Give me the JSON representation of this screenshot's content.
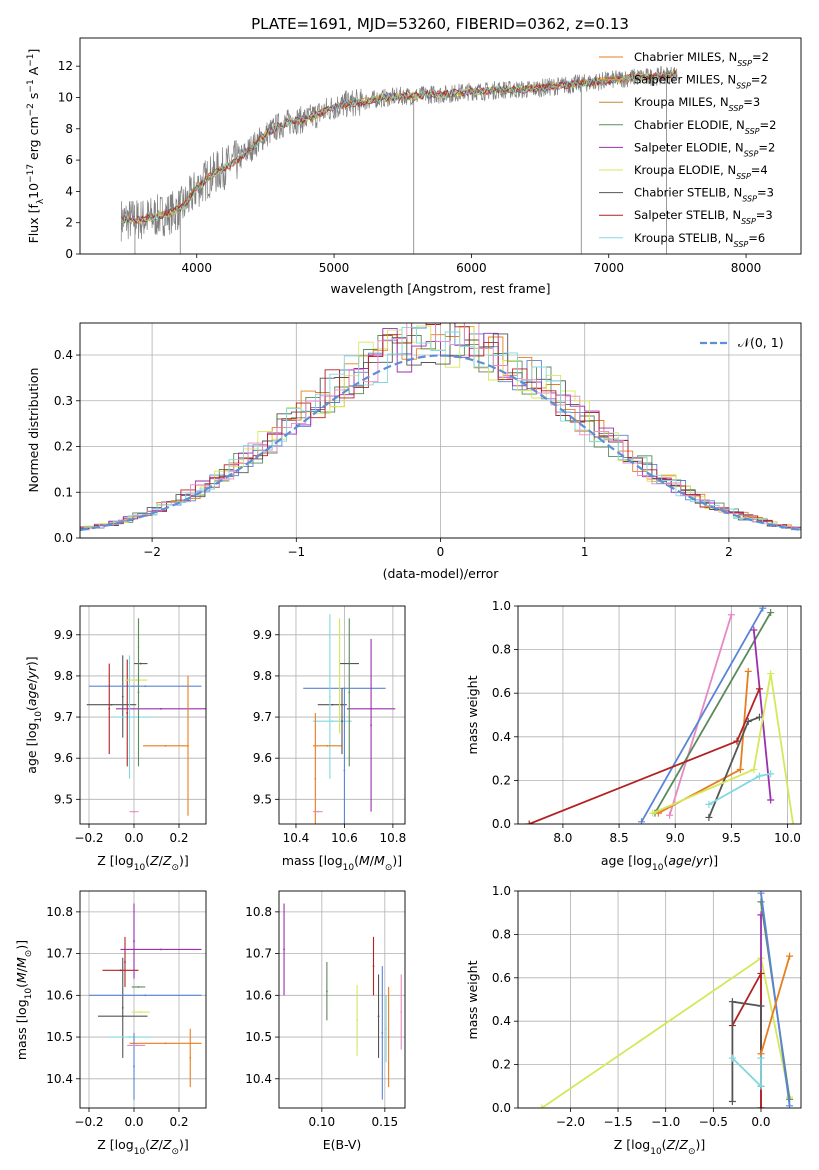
{
  "title": "PLATE=1691, MJD=53260, FIBERID=0362, z=0.13",
  "colors": {
    "chabrier_miles": "#e87d1e",
    "salpeter_miles": "#f28e2b",
    "kroupa_miles": "#c98a30",
    "chabrier_elodie": "#5b8f5b",
    "salpeter_elodie": "#9b2fae",
    "kroupa_elodie": "#d4e85a",
    "chabrier_stelib": "#555555",
    "salpeter_stelib": "#b22222",
    "kroupa_stelib": "#80d8e0",
    "extra_pink": "#e78ac3",
    "extra_blue": "#5b84d6",
    "extra_green": "#5a8a5a",
    "observed": "#808080",
    "gaussian": "#5b8fd6"
  },
  "chart_data": [
    {
      "id": "spectrum",
      "type": "line",
      "xlabel": "wavelength [Angstrom, rest frame]",
      "ylabel": "Flux [f_λ10^-17 erg cm^-2 s^-1 A^-1]",
      "xlim": [
        3150,
        8400
      ],
      "ylim": [
        0,
        13.8
      ],
      "xticks": [
        4000,
        5000,
        6000,
        7000,
        8000
      ],
      "yticks": [
        0,
        2,
        4,
        6,
        8,
        10,
        12
      ],
      "legend_position": "top-right",
      "legend": [
        {
          "text": "Chabrier MILES, N",
          "sub": "SSP",
          "tail": "=2",
          "color": "#e87d1e"
        },
        {
          "text": "Salpeter MILES, N",
          "sub": "SSP",
          "tail": "=2",
          "color": "#f28e2b"
        },
        {
          "text": "Kroupa MILES, N",
          "sub": "SSP",
          "tail": "=3",
          "color": "#c98a30"
        },
        {
          "text": "Chabrier ELODIE, N",
          "sub": "SSP",
          "tail": "=2",
          "color": "#5b8f5b"
        },
        {
          "text": "Salpeter ELODIE, N",
          "sub": "SSP",
          "tail": "=2",
          "color": "#9b2fae"
        },
        {
          "text": "Kroupa ELODIE, N",
          "sub": "SSP",
          "tail": "=4",
          "color": "#d4e85a"
        },
        {
          "text": "Chabrier STELIB, N",
          "sub": "SSP",
          "tail": "=3",
          "color": "#555555"
        },
        {
          "text": "Salpeter STELIB, N",
          "sub": "SSP",
          "tail": "=3",
          "color": "#b22222"
        },
        {
          "text": "Kroupa STELIB, N",
          "sub": "SSP",
          "tail": "=6",
          "color": "#80d8e0"
        }
      ],
      "continuum": {
        "x": [
          3450,
          3600,
          3700,
          3800,
          3900,
          4000,
          4100,
          4200,
          4300,
          4400,
          4500,
          4600,
          4700,
          4800,
          4900,
          5000,
          5100,
          5200,
          5300,
          5400,
          5500,
          5600,
          5700,
          5800,
          5900,
          6000,
          6100,
          6200,
          6300,
          6400,
          6500,
          6600,
          6700,
          6800,
          6900,
          7000,
          7100,
          7200,
          7300,
          7400,
          7500
        ],
        "y": [
          2.2,
          2.2,
          2.4,
          2.6,
          3.0,
          4.2,
          5.0,
          5.5,
          6.0,
          6.8,
          7.6,
          8.2,
          8.5,
          8.6,
          9.0,
          9.4,
          9.6,
          9.7,
          9.9,
          10.0,
          10.1,
          10.1,
          10.2,
          10.2,
          10.3,
          10.4,
          10.4,
          10.5,
          10.5,
          10.5,
          10.6,
          10.7,
          10.8,
          10.9,
          11.0,
          11.1,
          11.2,
          11.3,
          11.3,
          11.4,
          11.5
        ]
      },
      "dips": [
        {
          "x": 3550,
          "y": 0.0
        },
        {
          "x": 3880,
          "y": 0.0
        },
        {
          "x": 5580,
          "y": 0.0
        },
        {
          "x": 6800,
          "y": 0.0
        },
        {
          "x": 7420,
          "y": 0.0
        }
      ]
    },
    {
      "id": "residuals",
      "type": "line",
      "xlabel": "(data-model)/error",
      "ylabel": "Normed distribution",
      "xlim": [
        -2.5,
        2.5
      ],
      "ylim": [
        0,
        0.47
      ],
      "xticks": [
        -2,
        -1,
        0,
        1,
        2
      ],
      "yticks": [
        0.0,
        0.1,
        0.2,
        0.3,
        0.4
      ],
      "grid": true,
      "legend_position": "top-right",
      "legend_label": "𝒩(0, 1)",
      "gaussian": {
        "mean": 0,
        "sigma": 1
      }
    },
    {
      "id": "age_vs_Z",
      "type": "scatter",
      "xlabel": "Z [log10(Z/Z☉)]",
      "ylabel": "age  [log10(age/yr)]",
      "xlim": [
        -0.24,
        0.32
      ],
      "ylim": [
        9.44,
        9.97
      ],
      "xticks": [
        -0.2,
        0.0,
        0.2
      ],
      "xtick_labels": [
        "−0.2",
        "0.0",
        "0.2"
      ],
      "yticks": [
        9.5,
        9.6,
        9.7,
        9.8,
        9.9
      ],
      "grid": true,
      "points": [
        {
          "x": -0.05,
          "y": 9.75,
          "xerr": 0.0,
          "yerr": 0.1,
          "color": "#555555"
        },
        {
          "x": 0.03,
          "y": 9.83,
          "xerr": 0.03,
          "yerr": 0.0,
          "color": "#555555"
        },
        {
          "x": -0.1,
          "y": 9.73,
          "xerr": 0.11,
          "yerr": 0.0,
          "color": "#555555"
        },
        {
          "x": 0.05,
          "y": 9.775,
          "xerr": 0.25,
          "yerr": 0.0,
          "color": "#5b84d6"
        },
        {
          "x": 0.12,
          "y": 9.72,
          "xerr": 0.2,
          "yerr": 0.0,
          "color": "#9b2fae"
        },
        {
          "x": 0.0,
          "y": 9.7,
          "xerr": 0.09,
          "yerr": 0.0,
          "color": "#80d8e0"
        },
        {
          "x": 0.14,
          "y": 9.63,
          "xerr": 0.1,
          "yerr": 0.0,
          "color": "#e87d1e"
        },
        {
          "x": 0.24,
          "y": 9.63,
          "xerr": 0.0,
          "yerr": 0.17,
          "color": "#e87d1e"
        },
        {
          "x": -0.03,
          "y": 9.71,
          "xerr": 0.0,
          "yerr": 0.13,
          "color": "#b22222"
        },
        {
          "x": 0.02,
          "y": 9.87,
          "xerr": 0.0,
          "yerr": 0.07,
          "color": "#d4e85a"
        },
        {
          "x": -0.11,
          "y": 9.72,
          "xerr": 0.0,
          "yerr": 0.11,
          "color": "#b22222"
        },
        {
          "x": -0.02,
          "y": 9.7,
          "xerr": 0.0,
          "yerr": 0.15,
          "color": "#80d8e0"
        },
        {
          "x": 0.0,
          "y": 9.47,
          "xerr": 0.02,
          "yerr": 0.0,
          "color": "#e78ac3"
        },
        {
          "x": 0.01,
          "y": 9.79,
          "xerr": 0.05,
          "yerr": 0.0,
          "color": "#d4e85a"
        },
        {
          "x": 0.02,
          "y": 9.76,
          "xerr": 0.0,
          "yerr": 0.18,
          "color": "#5a8a5a"
        }
      ]
    },
    {
      "id": "age_vs_mass",
      "type": "scatter",
      "xlabel": "mass [log10(M/M☉)]",
      "xlim": [
        10.33,
        10.85
      ],
      "ylim": [
        9.44,
        9.97
      ],
      "xticks": [
        10.4,
        10.6,
        10.8
      ],
      "yticks": [
        9.5,
        9.6,
        9.7,
        9.8,
        9.9
      ],
      "grid": true,
      "points": [
        {
          "x": 10.55,
          "y": 9.73,
          "xerr": 0.06,
          "yerr": 0.0,
          "color": "#555555"
        },
        {
          "x": 10.62,
          "y": 9.83,
          "xerr": 0.04,
          "yerr": 0.0,
          "color": "#555555"
        },
        {
          "x": 10.6,
          "y": 9.77,
          "xerr": 0.17,
          "yerr": 0.0,
          "color": "#5b84d6"
        },
        {
          "x": 10.71,
          "y": 9.72,
          "xerr": 0.1,
          "yerr": 0.0,
          "color": "#9b2fae"
        },
        {
          "x": 10.71,
          "y": 9.68,
          "xerr": 0.0,
          "yerr": 0.21,
          "color": "#9b2fae"
        },
        {
          "x": 10.55,
          "y": 9.69,
          "xerr": 0.08,
          "yerr": 0.0,
          "color": "#80d8e0"
        },
        {
          "x": 10.54,
          "y": 9.75,
          "xerr": 0.0,
          "yerr": 0.2,
          "color": "#80d8e0"
        },
        {
          "x": 10.53,
          "y": 9.63,
          "xerr": 0.06,
          "yerr": 0.0,
          "color": "#e87d1e"
        },
        {
          "x": 10.48,
          "y": 9.55,
          "xerr": 0.0,
          "yerr": 0.16,
          "color": "#e87d1e"
        },
        {
          "x": 10.58,
          "y": 9.8,
          "xerr": 0.0,
          "yerr": 0.14,
          "color": "#d4e85a"
        },
        {
          "x": 10.59,
          "y": 9.69,
          "xerr": 0.0,
          "yerr": 0.08,
          "color": "#555555"
        },
        {
          "x": 10.62,
          "y": 9.76,
          "xerr": 0.0,
          "yerr": 0.18,
          "color": "#5a8a5a"
        },
        {
          "x": 10.6,
          "y": 9.57,
          "xerr": 0.0,
          "yerr": 0.2,
          "color": "#5b84d6"
        },
        {
          "x": 10.49,
          "y": 9.47,
          "xerr": 0.02,
          "yerr": 0.0,
          "color": "#e78ac3"
        }
      ]
    },
    {
      "id": "weight_vs_age",
      "type": "line",
      "xlabel": "age  [log10(age/yr)]",
      "ylabel": "mass weight",
      "xlim": [
        7.6,
        10.12
      ],
      "ylim": [
        0,
        1
      ],
      "xticks": [
        8.0,
        8.5,
        9.0,
        9.5,
        10.0
      ],
      "yticks": [
        0.0,
        0.2,
        0.4,
        0.6,
        0.8,
        1.0
      ],
      "grid": true,
      "series": [
        {
          "color": "#e78ac3",
          "x": [
            8.95,
            9.5
          ],
          "y": [
            0.04,
            0.96
          ]
        },
        {
          "color": "#5b84d6",
          "x": [
            8.7,
            9.78
          ],
          "y": [
            0.01,
            0.99
          ]
        },
        {
          "color": "#5a8a5a",
          "x": [
            8.82,
            9.85
          ],
          "y": [
            0.05,
            0.97
          ]
        },
        {
          "color": "#9b2fae",
          "x": [
            9.7,
            9.85
          ],
          "y": [
            0.89,
            0.11
          ]
        },
        {
          "color": "#e87d1e",
          "x": [
            8.85,
            9.58,
            9.65
          ],
          "y": [
            0.05,
            0.25,
            0.7
          ]
        },
        {
          "color": "#b22222",
          "x": [
            7.7,
            9.55,
            9.75
          ],
          "y": [
            0.0,
            0.38,
            0.62
          ]
        },
        {
          "color": "#555555",
          "x": [
            9.3,
            9.65,
            9.75
          ],
          "y": [
            0.03,
            0.47,
            0.49
          ]
        },
        {
          "color": "#d4e85a",
          "x": [
            8.8,
            9.7,
            9.85,
            10.05
          ],
          "y": [
            0.05,
            0.25,
            0.69,
            0.0
          ]
        },
        {
          "color": "#80d8e0",
          "x": [
            9.3,
            9.75,
            9.85
          ],
          "y": [
            0.09,
            0.22,
            0.23
          ]
        }
      ]
    },
    {
      "id": "mass_vs_Z",
      "type": "scatter",
      "xlabel": "Z [log10(Z/Z☉)]",
      "ylabel": "mass [log10(M/M☉)]",
      "xlim": [
        -0.24,
        0.32
      ],
      "ylim": [
        10.33,
        10.85
      ],
      "xticks": [
        -0.2,
        0.0,
        0.2
      ],
      "xtick_labels": [
        "−0.2",
        "0.0",
        "0.2"
      ],
      "yticks": [
        10.4,
        10.5,
        10.6,
        10.7,
        10.8
      ],
      "grid": true,
      "points": [
        {
          "x": -0.05,
          "y": 10.55,
          "xerr": 0.11,
          "yerr": 0.0,
          "color": "#555555"
        },
        {
          "x": -0.05,
          "y": 10.57,
          "xerr": 0.0,
          "yerr": 0.12,
          "color": "#555555"
        },
        {
          "x": -0.06,
          "y": 10.66,
          "xerr": 0.08,
          "yerr": 0.0,
          "color": "#b22222"
        },
        {
          "x": -0.04,
          "y": 10.68,
          "xerr": 0.0,
          "yerr": 0.06,
          "color": "#b22222"
        },
        {
          "x": 0.12,
          "y": 10.71,
          "xerr": 0.18,
          "yerr": 0.0,
          "color": "#9b2fae"
        },
        {
          "x": 0.0,
          "y": 10.73,
          "xerr": 0.0,
          "yerr": 0.09,
          "color": "#9b2fae"
        },
        {
          "x": 0.05,
          "y": 10.6,
          "xerr": 0.25,
          "yerr": 0.0,
          "color": "#5b84d6"
        },
        {
          "x": -0.02,
          "y": 10.5,
          "xerr": 0.1,
          "yerr": 0.0,
          "color": "#80d8e0"
        },
        {
          "x": 0.14,
          "y": 10.485,
          "xerr": 0.16,
          "yerr": 0.0,
          "color": "#e87d1e"
        },
        {
          "x": 0.25,
          "y": 10.45,
          "xerr": 0.0,
          "yerr": 0.07,
          "color": "#e87d1e"
        },
        {
          "x": 0.02,
          "y": 10.62,
          "xerr": 0.03,
          "yerr": 0.0,
          "color": "#5a8a5a"
        },
        {
          "x": 0.0,
          "y": 10.43,
          "xerr": 0.0,
          "yerr": 0.08,
          "color": "#5b84d6"
        },
        {
          "x": 0.01,
          "y": 10.48,
          "xerr": 0.04,
          "yerr": 0.0,
          "color": "#e78ac3"
        },
        {
          "x": 0.03,
          "y": 10.56,
          "xerr": 0.04,
          "yerr": 0.0,
          "color": "#d4e85a"
        }
      ]
    },
    {
      "id": "mass_vs_ebv",
      "type": "scatter",
      "xlabel": "E(B-V)",
      "xlim": [
        0.066,
        0.166
      ],
      "ylim": [
        10.33,
        10.85
      ],
      "xticks": [
        0.1,
        0.15
      ],
      "xtick_labels": [
        "0.10",
        "0.15"
      ],
      "yticks": [
        10.4,
        10.5,
        10.6,
        10.7,
        10.8
      ],
      "grid": true,
      "points": [
        {
          "x": 0.07,
          "y": 10.71,
          "yerr": 0.11,
          "color": "#9b2fae"
        },
        {
          "x": 0.104,
          "y": 10.61,
          "yerr": 0.07,
          "color": "#5a8a5a"
        },
        {
          "x": 0.128,
          "y": 10.54,
          "yerr": 0.085,
          "color": "#d4e85a"
        },
        {
          "x": 0.141,
          "y": 10.67,
          "yerr": 0.07,
          "color": "#b22222"
        },
        {
          "x": 0.145,
          "y": 10.55,
          "yerr": 0.1,
          "color": "#555555"
        },
        {
          "x": 0.148,
          "y": 10.51,
          "yerr": 0.16,
          "color": "#5b84d6"
        },
        {
          "x": 0.151,
          "y": 10.52,
          "yerr": 0.08,
          "color": "#80d8e0"
        },
        {
          "x": 0.153,
          "y": 10.5,
          "yerr": 0.12,
          "color": "#e87d1e"
        },
        {
          "x": 0.163,
          "y": 10.56,
          "yerr": 0.09,
          "color": "#e78ac3"
        }
      ]
    },
    {
      "id": "weight_vs_Z",
      "type": "line",
      "xlabel": "Z [log10(Z/Z☉)]",
      "ylabel": "mass weight",
      "xlim": [
        -2.55,
        0.42
      ],
      "ylim": [
        0,
        1
      ],
      "xticks": [
        -2.0,
        -1.5,
        -1.0,
        -0.5,
        0.0
      ],
      "xtick_labels": [
        "−2.0",
        "−1.5",
        "−1.0",
        "−0.5",
        "0.0"
      ],
      "yticks": [
        0.0,
        0.2,
        0.4,
        0.6,
        0.8,
        1.0
      ],
      "grid": true,
      "series": [
        {
          "color": "#d4e85a",
          "x": [
            -2.3,
            0.0,
            0.3,
            0.3
          ],
          "y": [
            0.0,
            0.69,
            0.05,
            0.04
          ]
        },
        {
          "color": "#5a8a5a",
          "x": [
            0.0,
            0.3
          ],
          "y": [
            0.95,
            0.04
          ]
        },
        {
          "color": "#9b2fae",
          "x": [
            0.0,
            0.0
          ],
          "y": [
            0.89,
            0.0
          ]
        },
        {
          "color": "#5b84d6",
          "x": [
            0.0,
            0.3
          ],
          "y": [
            0.99,
            0.01
          ]
        },
        {
          "color": "#b22222",
          "x": [
            -0.3,
            0.0,
            0.0
          ],
          "y": [
            0.38,
            0.62,
            0.0
          ]
        },
        {
          "color": "#555555",
          "x": [
            -0.3,
            -0.3,
            0.0,
            0.0
          ],
          "y": [
            0.03,
            0.49,
            0.47,
            0.1
          ]
        },
        {
          "color": "#e87d1e",
          "x": [
            0.0,
            0.3
          ],
          "y": [
            0.25,
            0.7
          ]
        },
        {
          "color": "#80d8e0",
          "x": [
            -0.3,
            0.0,
            0.0
          ],
          "y": [
            0.23,
            0.1,
            0.23
          ]
        }
      ]
    }
  ]
}
